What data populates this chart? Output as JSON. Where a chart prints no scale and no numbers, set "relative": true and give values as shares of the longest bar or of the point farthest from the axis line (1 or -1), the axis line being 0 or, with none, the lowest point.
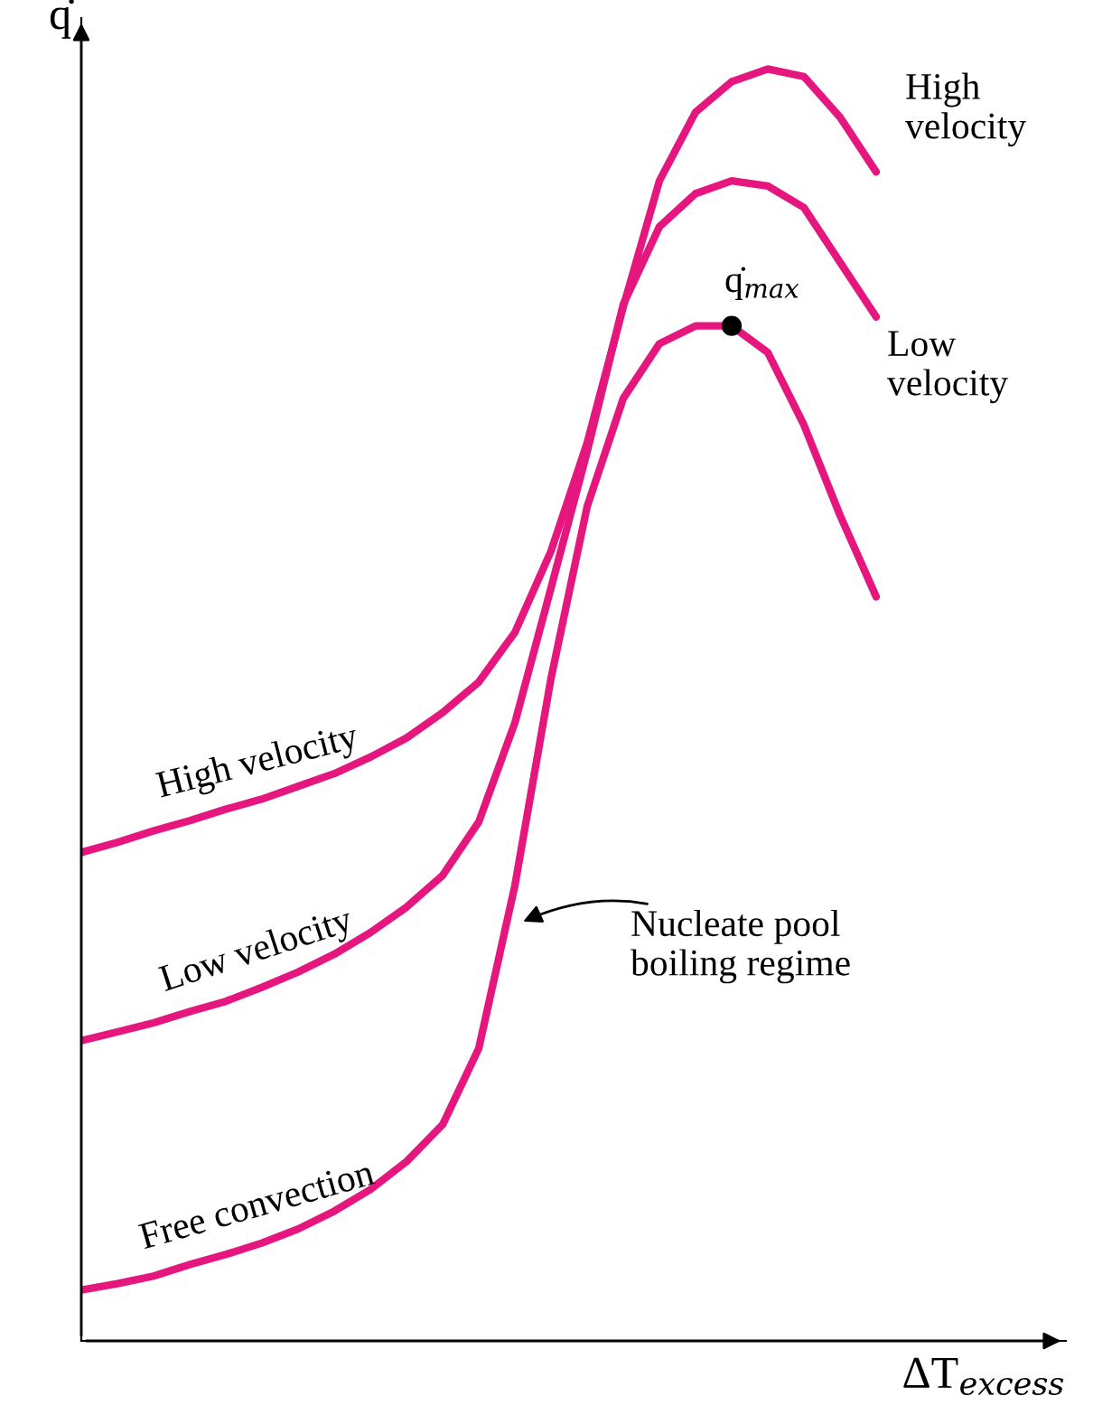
{
  "chart_data": {
    "type": "line",
    "relative": true,
    "xlabel": "ΔT$_{excess}$",
    "ylabel": "q̇",
    "legend": false,
    "marker": "none",
    "line_style": "solid",
    "categories": [
      null,
      null,
      null,
      null,
      null,
      null,
      null,
      null,
      null,
      null,
      null,
      null,
      null,
      null,
      null,
      null,
      null,
      null,
      null,
      null,
      null,
      null,
      null
    ],
    "series": [
      {
        "name": "High velocity",
        "color": "#e5177f",
        "values": [
          0.384,
          0.392,
          0.401,
          0.409,
          0.418,
          0.426,
          0.436,
          0.446,
          0.459,
          0.474,
          0.494,
          0.518,
          0.557,
          0.621,
          0.706,
          0.813,
          0.912,
          0.966,
          0.99,
          1.0,
          0.994,
          0.962,
          0.919
        ]
      },
      {
        "name": "Low velocity",
        "color": "#e5177f",
        "values": [
          0.236,
          0.243,
          0.25,
          0.259,
          0.267,
          0.278,
          0.29,
          0.304,
          0.321,
          0.341,
          0.366,
          0.408,
          0.486,
          0.592,
          0.699,
          0.815,
          0.876,
          0.902,
          0.912,
          0.908,
          0.891,
          0.848,
          0.805
        ]
      },
      {
        "name": "Free convection",
        "color": "#e5177f",
        "values": [
          0.04,
          0.045,
          0.051,
          0.06,
          0.068,
          0.077,
          0.088,
          0.102,
          0.119,
          0.141,
          0.17,
          0.23,
          0.358,
          0.521,
          0.656,
          0.741,
          0.784,
          0.798,
          0.798,
          0.777,
          0.72,
          0.649,
          0.585
        ]
      }
    ],
    "annotations": [
      "High\nvelocity",
      "Low\nvelocity",
      "q̇$_{max}$",
      "Nucleate pool\nboiling regime"
    ]
  }
}
